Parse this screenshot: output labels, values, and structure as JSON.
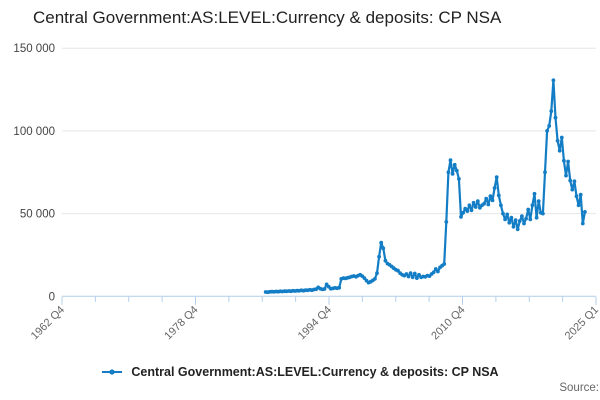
{
  "title": "Central Government:AS:LEVEL:Currency & deposits: CP NSA",
  "legend": {
    "label": "Central Government:AS:LEVEL:Currency & deposits: CP NSA"
  },
  "source_label": "Source:",
  "colors": {
    "series_line": "#137DC5",
    "axis_line": "#b3cde8",
    "tick": "#b3cde8",
    "gridline": "#e6e6e6",
    "y_label": "#444444",
    "x_label": "#666666",
    "title_text": "#222222"
  },
  "chart_data": {
    "type": "line",
    "title": "Central Government:AS:LEVEL:Currency & deposits: CP NSA",
    "xlabel": "",
    "ylabel": "",
    "ylim": [
      0,
      150000
    ],
    "y_tick_labels": [
      "0",
      "50 000",
      "100 000",
      "150 000"
    ],
    "y_tick_values": [
      0,
      50000,
      100000,
      150000
    ],
    "x_tick_labels": [
      "1962 Q4",
      "1978 Q4",
      "1994 Q4",
      "2010 Q4",
      "2025 Q1"
    ],
    "x_axis_start": "1962 Q4",
    "x_axis_end": "2025 Q1",
    "grid": "horizontal",
    "legend_position": "bottom",
    "series": [
      {
        "name": "Central Government:AS:LEVEL:Currency & deposits: CP NSA",
        "start_period": "1987 Q1",
        "end_period": "2025 Q1",
        "frequency": "quarterly",
        "values": [
          2600,
          2500,
          2700,
          2800,
          2700,
          2900,
          2800,
          3000,
          2900,
          3100,
          3000,
          3200,
          3100,
          3300,
          3200,
          3400,
          3300,
          3600,
          3400,
          3700,
          3600,
          3900,
          3700,
          4100,
          4300,
          5400,
          4600,
          4200,
          4400,
          7200,
          5800,
          4600,
          4800,
          5100,
          4900,
          5200,
          10500,
          11000,
          10800,
          11200,
          11500,
          12000,
          12300,
          11800,
          12500,
          13000,
          12200,
          11000,
          9500,
          8300,
          8800,
          9600,
          10500,
          14000,
          24000,
          32400,
          29000,
          21500,
          19800,
          19000,
          18000,
          17000,
          16000,
          15500,
          14000,
          13000,
          12500,
          13500,
          12000,
          14000,
          11500,
          13800,
          11000,
          13000,
          11500,
          12000,
          11800,
          12500,
          12200,
          13500,
          14500,
          16500,
          15000,
          17500,
          18500,
          19500,
          45000,
          75000,
          82300,
          74000,
          79500,
          76000,
          71000,
          48000,
          50500,
          53000,
          51500,
          55000,
          52000,
          56500,
          54000,
          57500,
          53500,
          55000,
          56000,
          59000,
          55500,
          60500,
          58000,
          65500,
          72000,
          61000,
          55000,
          50000,
          46500,
          49500,
          44500,
          47500,
          42000,
          46000,
          40500,
          45500,
          48500,
          44000,
          47000,
          52500,
          46500,
          55000,
          62000,
          47500,
          57500,
          50500,
          50000,
          75000,
          100000,
          103000,
          112000,
          130600,
          108000,
          94000,
          88000,
          96000,
          82000,
          73000,
          81500,
          70000,
          64500,
          69500,
          60500,
          55000,
          61500,
          44000,
          51000
        ]
      }
    ]
  }
}
